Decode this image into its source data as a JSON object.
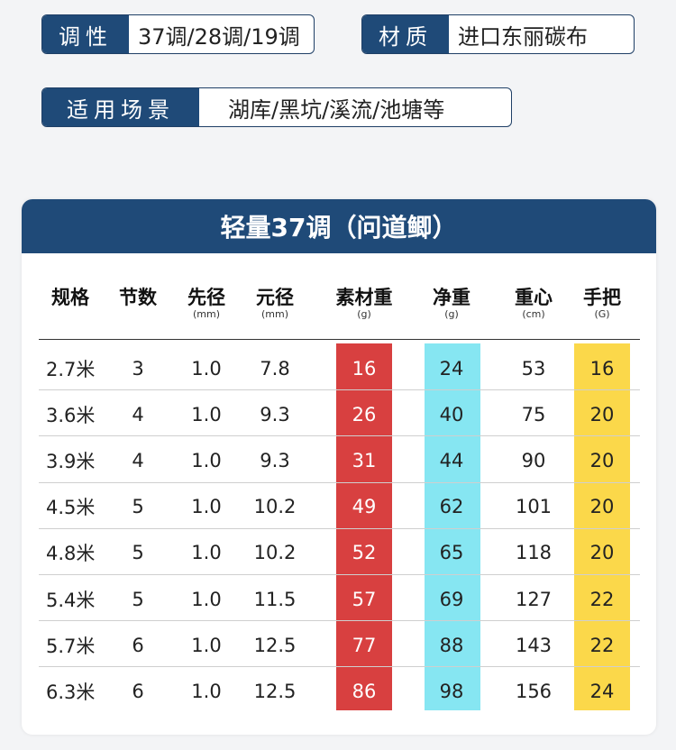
{
  "specs": {
    "tone_label": "调性",
    "tone_value": "37调/28调/19调",
    "material_label": "材质",
    "material_value": "进口东丽碳布",
    "scene_label": "适用场景",
    "scene_value": "湖库/黑坑/溪流/池塘等"
  },
  "table": {
    "title": "轻量37调（问道鲫）",
    "headers": [
      {
        "label": "规格",
        "unit": ""
      },
      {
        "label": "节数",
        "unit": ""
      },
      {
        "label": "先径",
        "unit": "(mm)"
      },
      {
        "label": "元径",
        "unit": "(mm)"
      },
      {
        "label": "素材重",
        "unit": "(g)"
      },
      {
        "label": "净重",
        "unit": "(g)"
      },
      {
        "label": "重心",
        "unit": "(cm)"
      },
      {
        "label": "手把",
        "unit": "(G)"
      }
    ],
    "rows": [
      [
        "2.7米",
        "3",
        "1.0",
        "7.8",
        "16",
        "24",
        "53",
        "16"
      ],
      [
        "3.6米",
        "4",
        "1.0",
        "9.3",
        "26",
        "40",
        "75",
        "20"
      ],
      [
        "3.9米",
        "4",
        "1.0",
        "9.3",
        "31",
        "44",
        "90",
        "20"
      ],
      [
        "4.5米",
        "5",
        "1.0",
        "10.2",
        "49",
        "62",
        "101",
        "20"
      ],
      [
        "4.8米",
        "5",
        "1.0",
        "10.2",
        "52",
        "65",
        "118",
        "20"
      ],
      [
        "5.4米",
        "5",
        "1.0",
        "11.5",
        "57",
        "69",
        "127",
        "22"
      ],
      [
        "5.7米",
        "6",
        "1.0",
        "12.5",
        "77",
        "88",
        "143",
        "22"
      ],
      [
        "6.3米",
        "6",
        "1.0",
        "12.5",
        "86",
        "98",
        "156",
        "24"
      ]
    ]
  },
  "colors": {
    "navy": "#1f4a78",
    "raw_weight_highlight": "#d84040",
    "net_weight_highlight": "#86e6f2",
    "handle_highlight": "#fbd84a"
  }
}
